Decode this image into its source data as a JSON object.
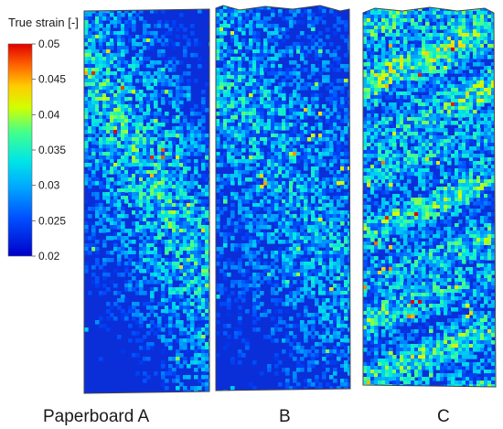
{
  "chart_data": {
    "type": "heatmap",
    "title": "",
    "colorbar": {
      "label": "True strain [-]",
      "ticks": [
        0.05,
        0.045,
        0.04,
        0.035,
        0.03,
        0.025,
        0.02
      ],
      "tick_labels": [
        "0.05",
        "0.045",
        "0.04",
        "0.035",
        "0.03",
        "0.025",
        "0.02"
      ],
      "range": [
        0.02,
        0.05
      ],
      "colormap": "jet",
      "placement": "left"
    },
    "panels": [
      {
        "name": "Paperboard A",
        "label": "Paperboard A",
        "mean_strain": 0.026,
        "band": "diagonal-down-right"
      },
      {
        "name": "B",
        "label": "B",
        "mean_strain": 0.024,
        "band": "diagonal-down-right-weak"
      },
      {
        "name": "C",
        "label": "C",
        "mean_strain": 0.028,
        "band": "horizontal-streaks"
      }
    ]
  },
  "colors": {
    "low": "#0000c8",
    "mid": "#00b4ff",
    "high": "#ff0000"
  }
}
